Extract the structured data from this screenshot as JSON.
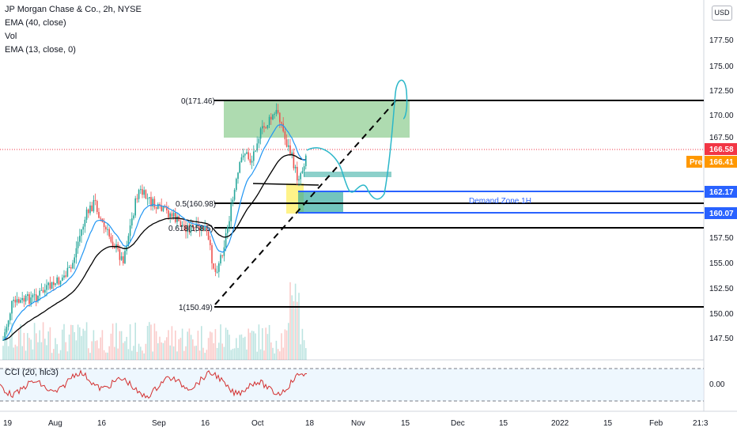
{
  "legend": {
    "symbol": "JP Morgan Chase & Co., 2h, NYSE",
    "ema40": "EMA (40, close)",
    "vol": "Vol",
    "ema13": "EMA (13, close, 0)"
  },
  "currency_button": "USD",
  "price_axis": [
    "177.50",
    "175.00",
    "172.50",
    "170.00",
    "167.50",
    "157.50",
    "155.00",
    "152.50",
    "150.00",
    "147.50"
  ],
  "price_tags": {
    "last": {
      "text": "166.58",
      "color": "#f23645"
    },
    "pre_label": "Pre",
    "pre": {
      "text": "166.41",
      "color": "#ff9800"
    },
    "zone_top": {
      "text": "162.17",
      "color": "#2962ff"
    },
    "zone_bottom": {
      "text": "160.07",
      "color": "#2962ff"
    }
  },
  "fib_labels": {
    "level0": "0(171.46)",
    "level05": "0.5(160.98)",
    "level0618": "0.618(158.5)",
    "level1": "1(150.49)"
  },
  "zone_label": "Demand Zone 1H",
  "cci": {
    "label": "CCI (20, hlc3)",
    "axis_value": "0.00"
  },
  "time_axis": [
    "19",
    "Aug",
    "16",
    "Sep",
    "16",
    "Oct",
    "18",
    "Nov",
    "15",
    "Dec",
    "15",
    "2022",
    "15",
    "Feb",
    "21:3"
  ],
  "colors": {
    "up": "#26a69a",
    "down": "#ef5350",
    "ema_fast": "#2196f3",
    "ema_slow": "#000000",
    "projection": "#2bb7c9",
    "supply_zone": "#4caf50",
    "demand_zone": "#2962ff",
    "cci_line": "#d32f2f"
  }
}
